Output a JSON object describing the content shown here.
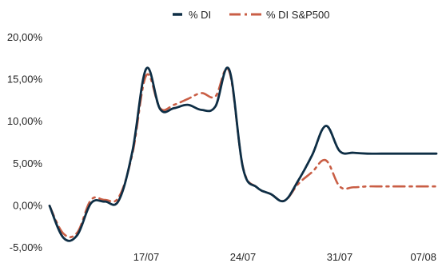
{
  "chart_data": {
    "type": "line",
    "title": "",
    "xlabel": "",
    "ylabel": "",
    "x_ticks": [
      "17/07",
      "24/07",
      "31/07",
      "07/08"
    ],
    "y_ticks": [
      "-5,00%",
      "0,00%",
      "5,00%",
      "10,00%",
      "15,00%",
      "20,00%"
    ],
    "ylim": [
      -5,
      20
    ],
    "grid": false,
    "legend_position": "top-center",
    "x": [
      "10/07",
      "11/07",
      "12/07",
      "13/07",
      "14/07",
      "15/07",
      "16/07",
      "17/07",
      "18/07",
      "19/07",
      "20/07",
      "21/07",
      "22/07",
      "23/07",
      "24/07",
      "25/07",
      "26/07",
      "27/07",
      "28/07",
      "29/07",
      "30/07",
      "31/07",
      "01/08",
      "02/08",
      "03/08",
      "04/08",
      "05/08",
      "06/08",
      "07/08"
    ],
    "series": [
      {
        "name": "% DI",
        "color": "#0e2e45",
        "style": "solid",
        "values": [
          0.0,
          -3.8,
          -3.5,
          0.3,
          0.5,
          0.6,
          6.5,
          16.3,
          11.5,
          11.6,
          12.0,
          11.4,
          11.8,
          16.2,
          4.5,
          2.2,
          1.4,
          0.6,
          3.0,
          6.0,
          9.5,
          6.5,
          6.3,
          6.2,
          6.2,
          6.2,
          6.2,
          6.2,
          6.2
        ]
      },
      {
        "name": "% DI S&P500",
        "color": "#c95e45",
        "style": "dash-dot",
        "values": [
          0.0,
          -3.3,
          -3.2,
          0.7,
          0.7,
          1.0,
          6.2,
          15.5,
          11.6,
          12.0,
          12.7,
          13.4,
          13.0,
          16.0,
          4.6,
          2.2,
          1.4,
          0.6,
          2.6,
          4.0,
          5.4,
          2.3,
          2.2,
          2.3,
          2.3,
          2.3,
          2.3,
          2.3,
          2.3
        ]
      }
    ]
  }
}
